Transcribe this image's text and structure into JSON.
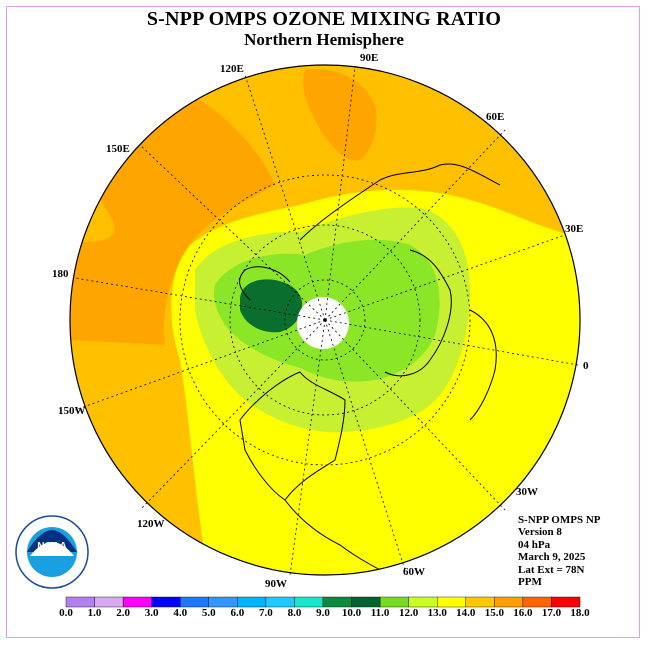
{
  "title": "S-NPP OMPS OZONE MIXING RATIO",
  "subtitle": "Northern Hemisphere",
  "longitude_labels": [
    "90E",
    "60E",
    "30E",
    "0",
    "30W",
    "60W",
    "90W",
    "120W",
    "150W",
    "180",
    "150E",
    "120E"
  ],
  "info_lines": [
    "S-NPP OMPS NP",
    "Version 8",
    "04 hPa",
    "March 9, 2025",
    "Lat Ext = 78N",
    "PPM"
  ],
  "logo_text": "NOAA",
  "colorbar": {
    "labels": [
      "0.0",
      "1.0",
      "2.0",
      "3.0",
      "4.0",
      "5.0",
      "6.0",
      "7.0",
      "8.0",
      "9.0",
      "10.0",
      "11.0",
      "12.0",
      "13.0",
      "14.0",
      "15.0",
      "16.0",
      "17.0",
      "18.0"
    ],
    "colors": [
      "#b47ff0",
      "#d8a8f0",
      "#ff00ff",
      "#0000ff",
      "#1e78ff",
      "#3296ff",
      "#00b4ff",
      "#1ecbff",
      "#14e6c8",
      "#0a8c3c",
      "#006432",
      "#78dc1e",
      "#c8ff1e",
      "#ffff00",
      "#ffc800",
      "#ffa000",
      "#ff6400",
      "#ff0000",
      "#8c5032"
    ]
  },
  "map_colors": {
    "ocean_base": "#ffff00",
    "orange": "#ffa500",
    "light_orange": "#ffc000",
    "green_light": "#c8f032",
    "green_mid": "#8ce628",
    "green_dark": "#0a6e2e",
    "pole_hole": "#ffffff"
  }
}
